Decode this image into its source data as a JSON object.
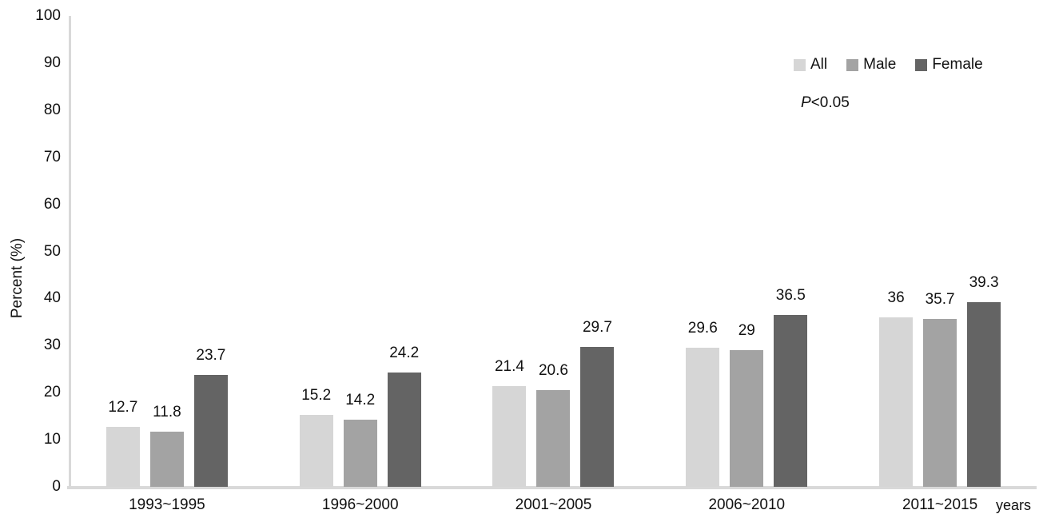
{
  "axis_color": "#d9d9d9",
  "annotations": {
    "p_italic": "P",
    "p_rest": "<0.05"
  },
  "chart_data": {
    "type": "bar",
    "title": "",
    "xlabel": "years",
    "ylabel": "Percent (%)",
    "ylim": [
      0,
      100
    ],
    "y_ticks": [
      0,
      10,
      20,
      30,
      40,
      50,
      60,
      70,
      80,
      90,
      100
    ],
    "grid": false,
    "legend_position": "top-right",
    "categories": [
      "1993~1995",
      "1996~2000",
      "2001~2005",
      "2006~2010",
      "2011~2015"
    ],
    "series": [
      {
        "name": "All",
        "color": "#d6d6d6",
        "values": [
          12.7,
          15.2,
          21.4,
          29.6,
          36
        ],
        "labels": [
          "12.7",
          "15.2",
          "21.4",
          "29.6",
          "36"
        ]
      },
      {
        "name": "Male",
        "color": "#a3a3a3",
        "values": [
          11.8,
          14.2,
          20.6,
          29,
          35.7
        ],
        "labels": [
          "11.8",
          "14.2",
          "20.6",
          "29",
          "35.7"
        ]
      },
      {
        "name": "Female",
        "color": "#646464",
        "values": [
          23.7,
          24.2,
          29.7,
          36.5,
          39.3
        ],
        "labels": [
          "23.7",
          "24.2",
          "29.7",
          "36.5",
          "39.3"
        ]
      }
    ]
  }
}
